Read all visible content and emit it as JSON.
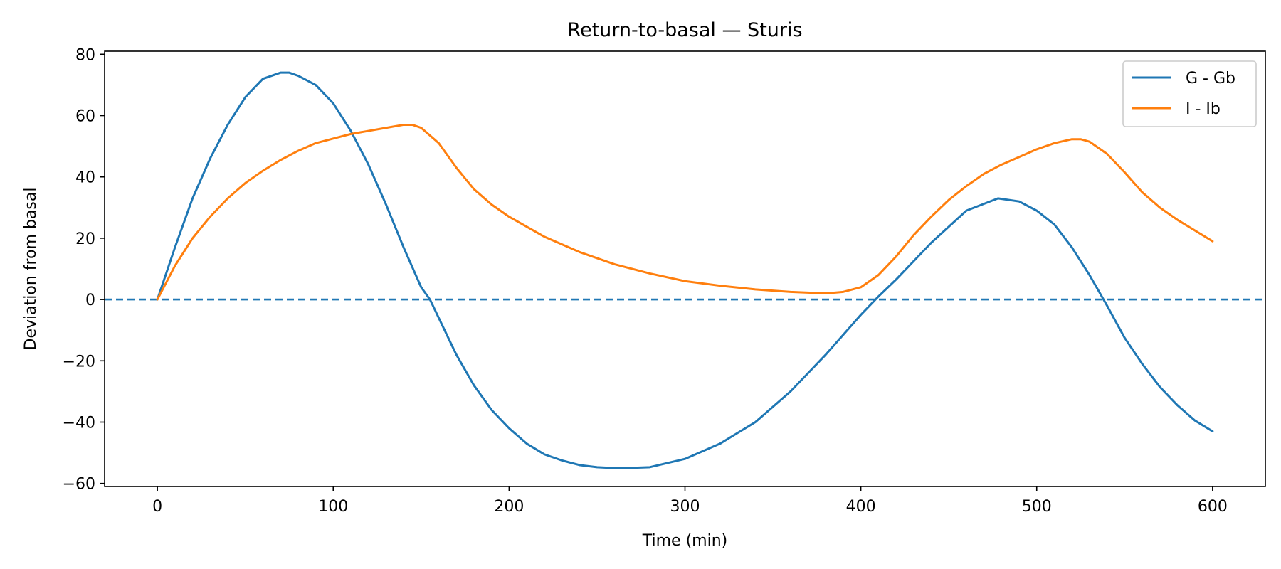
{
  "chart_data": {
    "type": "line",
    "title": "Return-to-basal — Sturis",
    "xlabel": "Time (min)",
    "ylabel": "Deviation from basal",
    "xlim": [
      -30,
      630
    ],
    "ylim": [
      -61,
      81
    ],
    "xticks": [
      0,
      100,
      200,
      300,
      400,
      500,
      600
    ],
    "yticks": [
      -60,
      -40,
      -20,
      0,
      20,
      40,
      60,
      80
    ],
    "xtick_labels": [
      "0",
      "100",
      "200",
      "300",
      "400",
      "500",
      "600"
    ],
    "ytick_labels": [
      "−60",
      "−40",
      "−20",
      "0",
      "20",
      "40",
      "60",
      "80"
    ],
    "grid": false,
    "legend_position": "top-right",
    "reference_line": {
      "y": 0,
      "style": "dashed",
      "color": "#1f77b4"
    },
    "series": [
      {
        "name": "G - Gb",
        "color": "#1f77b4",
        "x": [
          0,
          10,
          20,
          30,
          40,
          50,
          60,
          70,
          75,
          80,
          90,
          100,
          110,
          120,
          130,
          140,
          150,
          155,
          160,
          170,
          180,
          190,
          200,
          210,
          220,
          230,
          240,
          250,
          260,
          266,
          280,
          300,
          320,
          340,
          360,
          380,
          400,
          410,
          420,
          440,
          460,
          478,
          490,
          500,
          510,
          520,
          530,
          535,
          540,
          550,
          560,
          570,
          580,
          590,
          600
        ],
        "y": [
          0,
          17,
          33,
          46,
          57,
          66,
          72,
          74,
          74,
          73,
          70,
          64,
          55,
          44,
          31,
          17,
          4,
          0,
          -6,
          -18,
          -28,
          -36,
          -42,
          -47,
          -50.5,
          -52.5,
          -54,
          -54.7,
          -55,
          -55,
          -54.7,
          -52,
          -47,
          -40,
          -30,
          -18,
          -5,
          1,
          6.5,
          18.5,
          29,
          33,
          32,
          29,
          24.5,
          17,
          8,
          3,
          -2,
          -12.5,
          -21,
          -28.5,
          -34.5,
          -39.5,
          -43
        ]
      },
      {
        "name": "I - Ib",
        "color": "#ff7f0e",
        "x": [
          0,
          10,
          20,
          30,
          40,
          50,
          60,
          70,
          80,
          90,
          100,
          110,
          120,
          130,
          140,
          145,
          150,
          160,
          170,
          180,
          190,
          200,
          220,
          240,
          260,
          280,
          300,
          320,
          340,
          360,
          380,
          390,
          400,
          410,
          420,
          430,
          440,
          450,
          460,
          470,
          480,
          490,
          500,
          510,
          520,
          525,
          530,
          540,
          550,
          560,
          570,
          580,
          590,
          600
        ],
        "y": [
          0,
          11,
          20,
          27,
          33,
          38,
          42,
          45.5,
          48.5,
          51,
          52.5,
          54,
          55,
          56,
          57,
          57,
          56,
          51,
          43,
          36,
          31,
          27,
          20.5,
          15.5,
          11.5,
          8.5,
          6,
          4.5,
          3.3,
          2.5,
          2,
          2.5,
          4,
          8,
          14,
          21,
          27,
          32.5,
          37,
          41,
          44,
          46.5,
          49,
          51,
          52.3,
          52.3,
          51.5,
          47.5,
          41.5,
          35,
          30,
          26,
          22.5,
          19
        ]
      }
    ]
  }
}
